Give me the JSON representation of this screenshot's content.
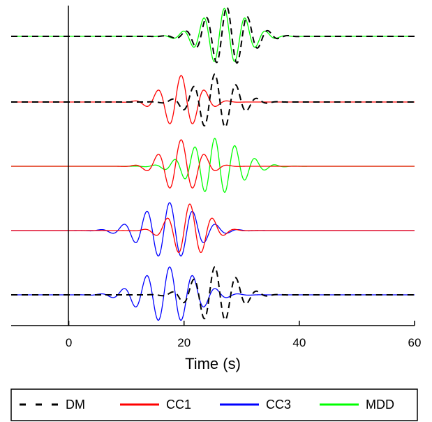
{
  "chart_data": {
    "type": "line",
    "xlabel": "Time (s)",
    "xlim": [
      -10,
      60
    ],
    "xticks": [
      0,
      20,
      40,
      60
    ],
    "xtick_labels": [
      "0",
      "20",
      "40",
      "60"
    ],
    "grid": false,
    "legend_position": "bottom",
    "series_styles": {
      "DM": {
        "color": "#000000",
        "dash": "dashed"
      },
      "CC1": {
        "color": "#ff0000",
        "dash": "solid"
      },
      "CC3": {
        "color": "#0000ff",
        "dash": "solid"
      },
      "MDD": {
        "color": "#00ff00",
        "dash": "solid"
      }
    },
    "legend": [
      {
        "label": "DM",
        "color": "#000000",
        "dash": "dashed"
      },
      {
        "label": "CC1",
        "color": "#ff0000",
        "dash": "solid"
      },
      {
        "label": "CC3",
        "color": "#0000ff",
        "dash": "solid"
      },
      {
        "label": "MDD",
        "color": "#00ff00",
        "dash": "solid"
      }
    ],
    "traces": [
      {
        "series": [
          "MDD",
          "DM"
        ],
        "waves": {
          "MDD": {
            "amp": 1.0,
            "center": 27,
            "width": 5.5,
            "period": 3.6,
            "phase": 0.0
          },
          "DM": {
            "amp": 1.05,
            "center": 27.5,
            "width": 5.5,
            "period": 3.6,
            "phase": 0.15
          }
        }
      },
      {
        "series": [
          "CC1",
          "DM"
        ],
        "waves": {
          "CC1": {
            "amp": 0.95,
            "center": 19.5,
            "width": 4.5,
            "period": 4.1,
            "phase": 0.0
          },
          "DM": {
            "amp": 1.0,
            "center": 25.5,
            "width": 5.0,
            "period": 3.7,
            "phase": 0.3
          }
        }
      },
      {
        "series": [
          "CC1",
          "MDD"
        ],
        "waves": {
          "CC1": {
            "amp": 0.95,
            "center": 19.5,
            "width": 4.5,
            "period": 4.1,
            "phase": 0.0
          },
          "MDD": {
            "amp": 1.0,
            "center": 25.5,
            "width": 6.0,
            "period": 3.5,
            "phase": 0.3
          }
        }
      },
      {
        "series": [
          "CC3",
          "CC1"
        ],
        "waves": {
          "CC3": {
            "amp": 1.0,
            "center": 17.5,
            "width": 6.5,
            "period": 4.0,
            "phase": 0.0
          },
          "CC1": {
            "amp": 0.95,
            "center": 21.0,
            "width": 4.5,
            "period": 4.0,
            "phase": 0.0
          }
        }
      },
      {
        "series": [
          "CC3",
          "DM"
        ],
        "waves": {
          "CC3": {
            "amp": 1.0,
            "center": 17.5,
            "width": 6.5,
            "period": 4.0,
            "phase": 0.0
          },
          "DM": {
            "amp": 1.0,
            "center": 25.5,
            "width": 5.0,
            "period": 3.7,
            "phase": 0.3
          }
        }
      }
    ]
  }
}
